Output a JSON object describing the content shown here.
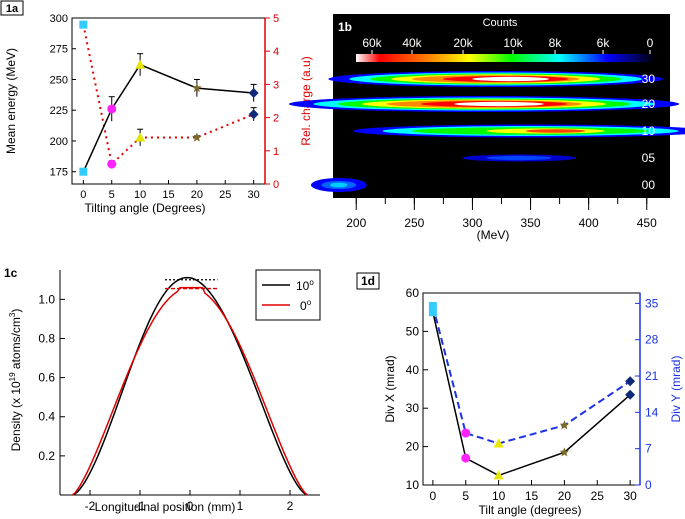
{
  "colors": {
    "black": "#000000",
    "red": "#e00000",
    "blue": "#1a33e6",
    "cyan": "#33ccff",
    "magenta": "#ff22ff",
    "yellow": "#e6e600",
    "olive": "#7a6a2a",
    "navy": "#102a7a"
  },
  "chart_data": [
    {
      "id": "1a",
      "panel_label": "1a",
      "type": "line",
      "x": [
        0,
        5,
        10,
        20,
        30
      ],
      "xlabel": "Tilting angle (Degrees)",
      "xticks": [
        "0",
        "5",
        "10",
        "15",
        "20",
        "25",
        "30"
      ],
      "xlim": [
        -2,
        32
      ],
      "ylabel": "Mean energy (MeV)",
      "ylim": [
        165,
        300
      ],
      "yticks": [
        "175",
        "200",
        "225",
        "250",
        "275",
        "300"
      ],
      "y2label": "Rel. charge (a.u)",
      "y2lim": [
        0,
        5
      ],
      "y2ticks": [
        "0",
        "1",
        "2",
        "3",
        "4",
        "5"
      ],
      "series": [
        {
          "name": "Mean energy",
          "axis": "left",
          "style": "solid",
          "values": [
            175,
            226,
            262,
            243,
            239
          ],
          "errors": [
            2,
            10,
            9,
            7,
            7
          ]
        },
        {
          "name": "Rel. charge",
          "axis": "right",
          "style": "dotted",
          "values": [
            4.8,
            0.6,
            1.4,
            1.4,
            2.1
          ],
          "errors": [
            0.05,
            0.1,
            0.25,
            0.05,
            0.2
          ]
        }
      ],
      "marker_colors": [
        "cyan",
        "magenta",
        "yellow",
        "olive",
        "navy"
      ]
    },
    {
      "id": "1b",
      "panel_label": "1b",
      "type": "heatmap",
      "colorbar_title": "Counts",
      "colorbar_ticks": [
        "60k",
        "40k",
        "20k",
        "10k",
        "8k",
        "6k",
        "0"
      ],
      "xlabel": "(MeV)",
      "xticks": [
        "200",
        "250",
        "300",
        "350",
        "400",
        "450"
      ],
      "xlim": [
        180,
        470
      ],
      "rows": [
        {
          "label": "30",
          "center": 320,
          "width": 60,
          "peak": 1.0
        },
        {
          "label": "20",
          "center": 310,
          "width": 70,
          "peak": 1.0
        },
        {
          "label": "10",
          "center": 350,
          "width": 85,
          "peak": 0.75
        },
        {
          "label": "05",
          "center": 340,
          "width": 35,
          "peak": 0.35
        },
        {
          "label": "00",
          "center": 185,
          "width": 15,
          "peak": 0.55
        }
      ]
    },
    {
      "id": "1c",
      "panel_label": "1c",
      "type": "line",
      "xlabel": "Longitudinal position (mm)",
      "xticks": [
        "-2",
        "-1",
        "0",
        "1",
        "2"
      ],
      "xlim": [
        -2.6,
        2.6
      ],
      "ylabel": "Density (x 10",
      "ylabel_sup": "19",
      "ylabel_tail": " atoms/cm",
      "ylabel_sup2": "3",
      "ylabel_end": ")",
      "ylim": [
        0.0,
        1.15
      ],
      "yticks": [
        "0.2",
        "0.4",
        "0.6",
        "0.8",
        "1.0"
      ],
      "legend": {
        "position": "top-right",
        "entries": [
          {
            "label": "10",
            "deg": "o",
            "color": "black"
          },
          {
            "label": "0",
            "deg": "o",
            "color": "red"
          }
        ]
      },
      "series": [
        {
          "name": "10 deg",
          "color": "black",
          "peak": 1.11,
          "peak_x": 0.0,
          "ref_level": 1.1
        },
        {
          "name": "0 deg",
          "color": "red",
          "peak": 1.06,
          "peak_x": 0.0,
          "ref_level": 1.055
        }
      ]
    },
    {
      "id": "1d",
      "panel_label": "1d",
      "type": "line",
      "x": [
        0,
        5,
        10,
        20,
        30
      ],
      "xlabel": "Tilt angle (degrees)",
      "xticks": [
        "0",
        "5",
        "10",
        "15",
        "20",
        "25",
        "30"
      ],
      "xlim": [
        -1.5,
        31.5
      ],
      "ylabel": "Div X (mrad)",
      "ylim": [
        10,
        60
      ],
      "yticks": [
        "10",
        "20",
        "30",
        "40",
        "50",
        "60"
      ],
      "y2label": "Div Y (mrad)",
      "y2lim": [
        0,
        37
      ],
      "y2ticks": [
        "0",
        "7",
        "14",
        "21",
        "28",
        "35"
      ],
      "series": [
        {
          "name": "Div X",
          "axis": "left",
          "style": "solid",
          "color": "black",
          "values": [
            55,
            17,
            12.5,
            18.5,
            33.5
          ]
        },
        {
          "name": "Div Y",
          "axis": "right",
          "style": "dashed",
          "color": "blue",
          "values": [
            34.5,
            10,
            8,
            11.5,
            20
          ]
        }
      ],
      "marker_colors": [
        "cyan",
        "magenta",
        "yellow",
        "olive",
        "navy"
      ]
    }
  ]
}
